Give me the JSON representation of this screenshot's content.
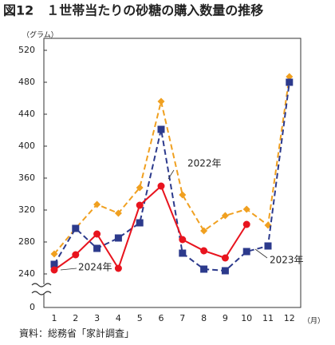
{
  "chart_data": {
    "type": "line",
    "title": "図12　１世帯当たりの砂糖の購入数量の推移",
    "y_label": "（グラム）",
    "x_label": "（月）",
    "source": "資料：総務省「家計調査」",
    "categories": [
      "1",
      "2",
      "3",
      "4",
      "5",
      "6",
      "7",
      "8",
      "9",
      "10",
      "11",
      "12"
    ],
    "series": [
      {
        "name": "2022年",
        "color": "#f0a020",
        "marker": "diamond",
        "dash": true,
        "values": [
          265,
          297,
          327,
          316,
          348,
          456,
          339,
          294,
          313,
          321,
          301,
          487
        ]
      },
      {
        "name": "2023年",
        "color": "#2c3a8c",
        "marker": "square",
        "dash": true,
        "values": [
          252,
          297,
          272,
          285,
          304,
          421,
          266,
          246,
          244,
          268,
          275,
          480
        ]
      },
      {
        "name": "2024年",
        "color": "#e8141e",
        "marker": "circle",
        "dash": false,
        "values": [
          245,
          264,
          290,
          247,
          326,
          350,
          283,
          269,
          260,
          302,
          null,
          null
        ]
      }
    ],
    "ylim": [
      0,
      520
    ],
    "ybreak": [
      0,
      240
    ],
    "yticks": [
      0,
      240,
      280,
      320,
      360,
      400,
      440,
      480,
      520
    ]
  }
}
